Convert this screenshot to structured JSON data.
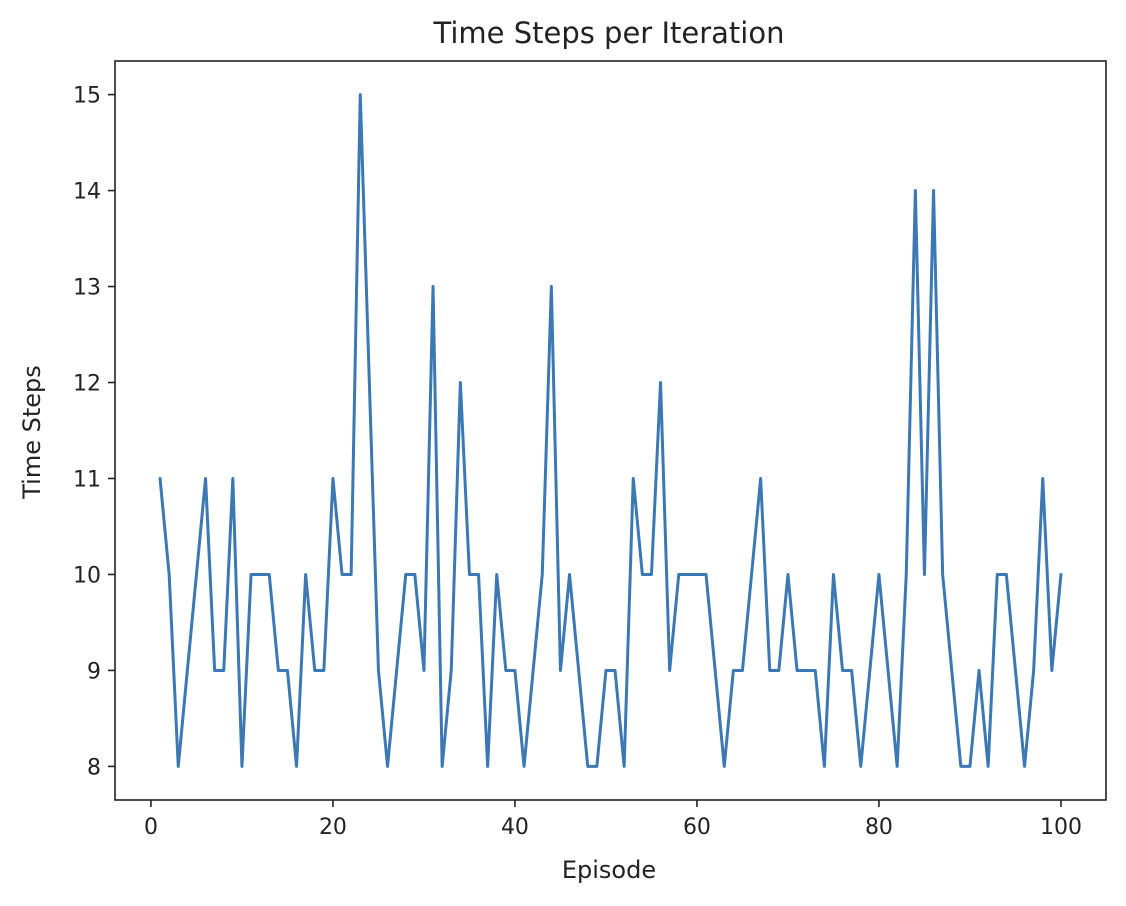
{
  "chart_data": {
    "type": "line",
    "title": "Time Steps per Iteration",
    "xlabel": "Episode",
    "ylabel": "Time Steps",
    "xlim": [
      -3.95,
      104.95
    ],
    "ylim": [
      7.65,
      15.35
    ],
    "xticks": [
      0,
      20,
      40,
      60,
      80,
      100
    ],
    "yticks": [
      8,
      9,
      10,
      11,
      12,
      13,
      14,
      15
    ],
    "grid": false,
    "legend": "none",
    "series": [
      {
        "color": "#3b78b4",
        "x": [
          1,
          2,
          3,
          4,
          5,
          6,
          7,
          8,
          9,
          10,
          11,
          12,
          13,
          14,
          15,
          16,
          17,
          18,
          19,
          20,
          21,
          22,
          23,
          24,
          25,
          26,
          27,
          28,
          29,
          30,
          31,
          32,
          33,
          34,
          35,
          36,
          37,
          38,
          39,
          40,
          41,
          42,
          43,
          44,
          45,
          46,
          47,
          48,
          49,
          50,
          51,
          52,
          53,
          54,
          55,
          56,
          57,
          58,
          59,
          60,
          61,
          62,
          63,
          64,
          65,
          66,
          67,
          68,
          69,
          70,
          71,
          72,
          73,
          74,
          75,
          76,
          77,
          78,
          79,
          80,
          81,
          82,
          83,
          84,
          85,
          86,
          87,
          88,
          89,
          90,
          91,
          92,
          93,
          94,
          95,
          96,
          97,
          98,
          99,
          100
        ],
        "y": [
          11,
          10,
          8,
          9,
          10,
          11,
          9,
          9,
          11,
          8,
          10,
          10,
          10,
          9,
          9,
          8,
          10,
          9,
          9,
          11,
          10,
          10,
          15,
          12,
          9,
          8,
          9,
          10,
          10,
          9,
          13,
          8,
          9,
          12,
          10,
          10,
          8,
          10,
          9,
          9,
          8,
          9,
          10,
          13,
          9,
          10,
          9,
          8,
          8,
          9,
          9,
          8,
          11,
          10,
          10,
          12,
          9,
          10,
          10,
          10,
          10,
          9,
          8,
          9,
          9,
          10,
          11,
          9,
          9,
          10,
          9,
          9,
          9,
          8,
          10,
          9,
          9,
          8,
          9,
          10,
          9,
          8,
          10,
          14,
          10,
          14,
          10,
          9,
          8,
          8,
          9,
          8,
          10,
          10,
          9,
          8,
          9,
          11,
          9,
          10
        ]
      }
    ]
  }
}
